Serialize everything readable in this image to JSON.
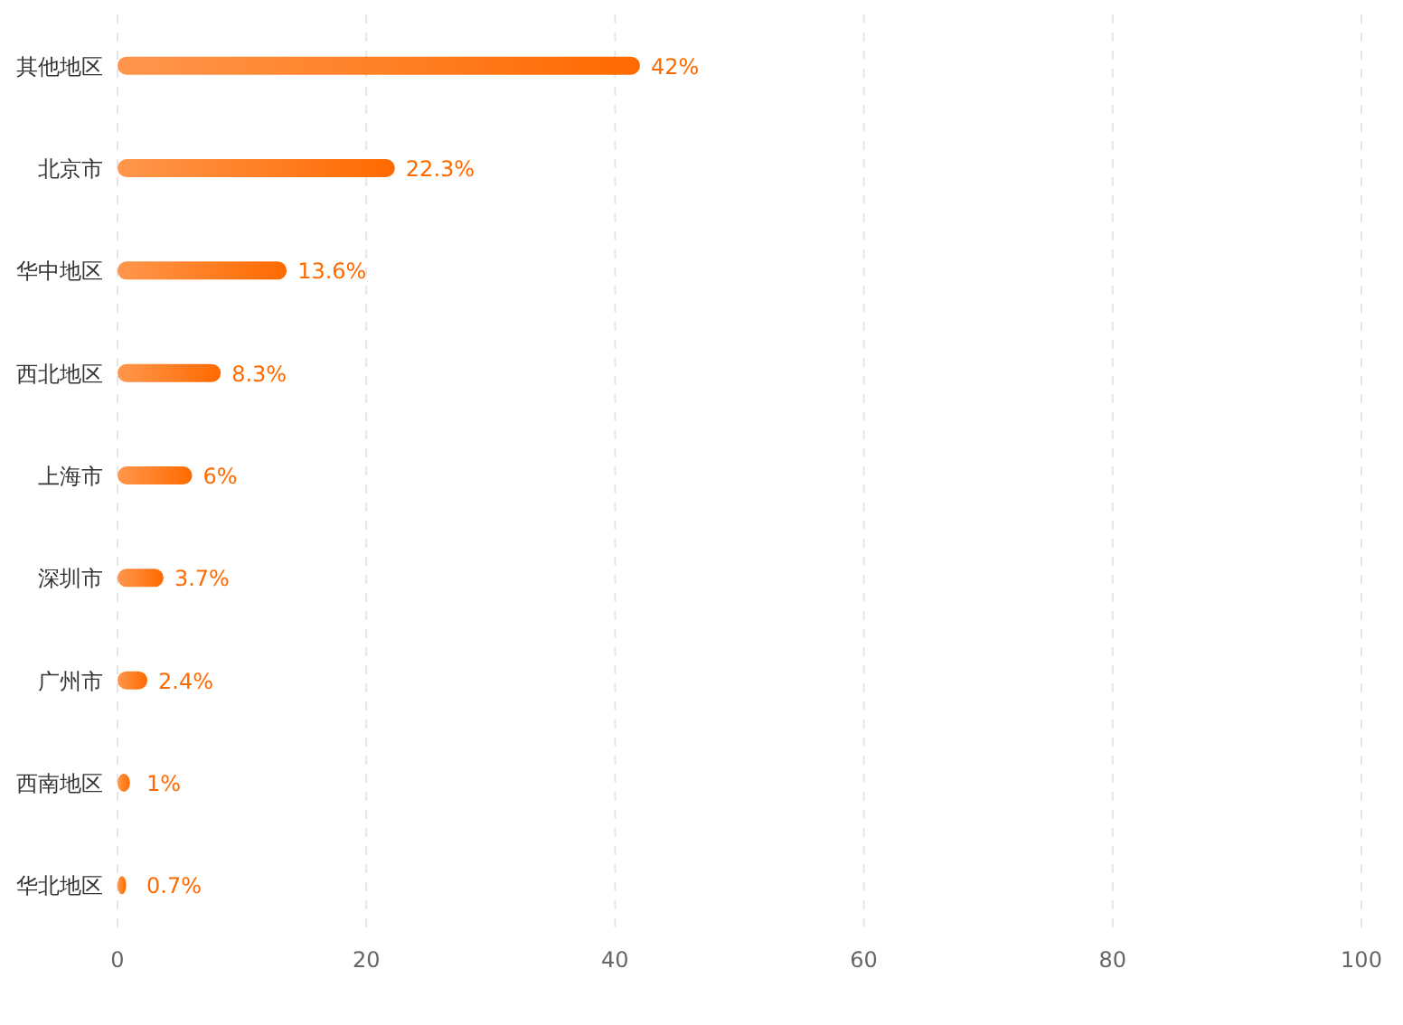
{
  "chart_data": {
    "type": "bar",
    "orientation": "horizontal",
    "categories": [
      "其他地区",
      "北京市",
      "华中地区",
      "西北地区",
      "上海市",
      "深圳市",
      "广州市",
      "西南地区",
      "华北地区"
    ],
    "values": [
      42,
      22.3,
      13.6,
      8.3,
      6,
      3.7,
      2.4,
      1,
      0.7
    ],
    "value_labels": [
      "42%",
      "22.3%",
      "13.6%",
      "8.3%",
      "6%",
      "3.7%",
      "2.4%",
      "1%",
      "0.7%"
    ],
    "color": "#ff6a00",
    "xlim": [
      0,
      100
    ],
    "xticks": [
      0,
      20,
      40,
      60,
      80,
      100
    ],
    "grid": "x"
  }
}
